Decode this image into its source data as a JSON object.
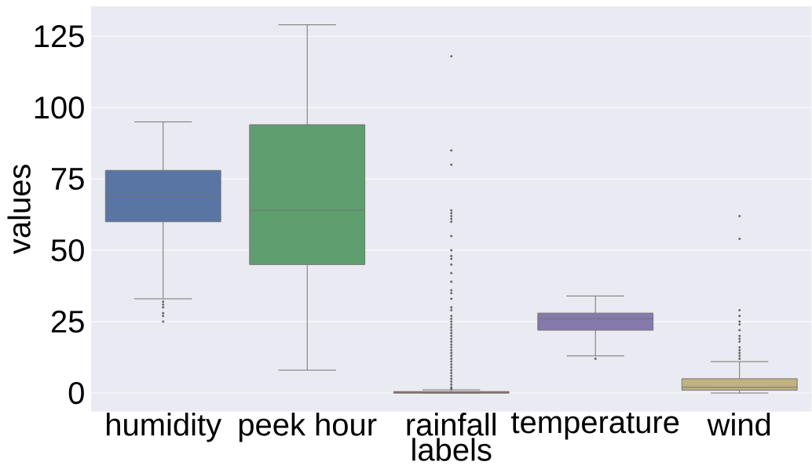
{
  "chart_data": {
    "type": "box",
    "xlabel": "labels",
    "ylabel": "values",
    "categories": [
      "humidity",
      "peek hour",
      "rainfall",
      "temperature",
      "wind"
    ],
    "colors": [
      "#5975a4",
      "#5f9e6e",
      "#b55d60",
      "#857aab",
      "#c1b37f"
    ],
    "boxes": [
      {
        "low": 33,
        "q1": 60,
        "median": 69,
        "q3": 78,
        "high": 95,
        "outliers": [
          32,
          31,
          30,
          28,
          27,
          25
        ]
      },
      {
        "low": 8,
        "q1": 45,
        "median": 64,
        "q3": 94,
        "high": 129
      },
      {
        "low": 0,
        "q1": 0,
        "median": 0,
        "q3": 0.5,
        "high": 1.1,
        "outliers": [
          118,
          85,
          80,
          64,
          63,
          62,
          61,
          60,
          55,
          50,
          48,
          47,
          45,
          42,
          39,
          36,
          35,
          33,
          30,
          29,
          27,
          26,
          25,
          24,
          23,
          22,
          21,
          20,
          19,
          18,
          17,
          16,
          15,
          14,
          13,
          12,
          11,
          10,
          9,
          8,
          7,
          6,
          5,
          4,
          3,
          2,
          1.5
        ]
      },
      {
        "low": 13,
        "q1": 22,
        "median": 26,
        "q3": 28,
        "high": 34,
        "outliers": [
          12
        ]
      },
      {
        "low": 0,
        "q1": 1,
        "median": 2,
        "q3": 5,
        "high": 11,
        "outliers": [
          62,
          54,
          29,
          27,
          25,
          24,
          22,
          20,
          19,
          18,
          16,
          15,
          14,
          13,
          12
        ]
      }
    ],
    "ylim": [
      -6.5,
      135.5
    ],
    "yticks": [
      0,
      25,
      50,
      75,
      100,
      125
    ],
    "grid": "y"
  }
}
